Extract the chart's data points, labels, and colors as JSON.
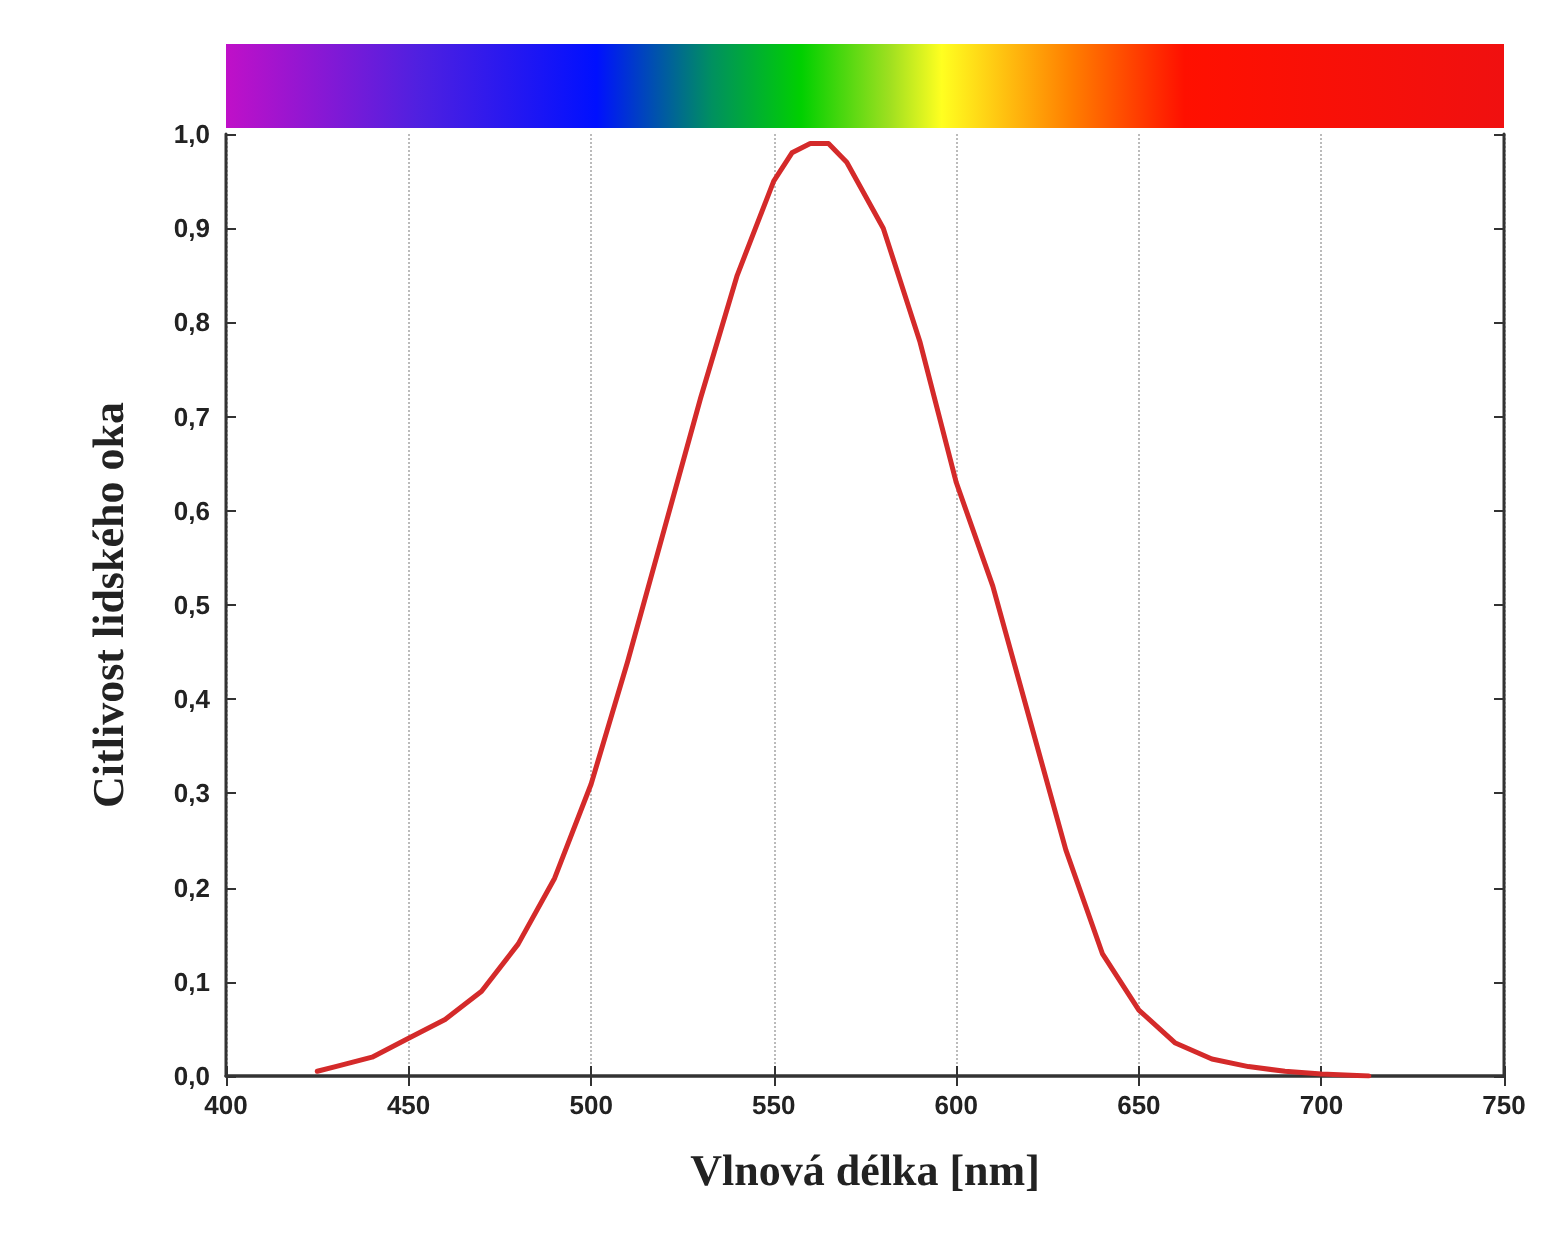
{
  "chart_data": {
    "type": "line",
    "xlabel": "Vlnová délka [nm]",
    "ylabel": "Citlivost lidského oka",
    "x": [
      425,
      430,
      440,
      450,
      460,
      470,
      480,
      490,
      500,
      510,
      520,
      530,
      540,
      550,
      555,
      560,
      565,
      570,
      580,
      590,
      600,
      610,
      620,
      630,
      640,
      650,
      660,
      670,
      680,
      690,
      700,
      713
    ],
    "series": [
      {
        "color": "#d42a2a",
        "values": [
          0.005,
          0.01,
          0.02,
          0.04,
          0.06,
          0.09,
          0.14,
          0.21,
          0.31,
          0.44,
          0.58,
          0.72,
          0.85,
          0.95,
          0.98,
          0.99,
          0.99,
          0.97,
          0.9,
          0.78,
          0.63,
          0.52,
          0.38,
          0.24,
          0.13,
          0.07,
          0.035,
          0.018,
          0.01,
          0.005,
          0.002,
          0
        ]
      }
    ],
    "xlim": [
      400,
      750
    ],
    "xticks": [
      400,
      450,
      500,
      550,
      600,
      650,
      700,
      750
    ],
    "ylim": [
      0,
      1
    ],
    "yticks": [
      {
        "value": 0,
        "label": "0,0"
      },
      {
        "value": 0.1,
        "label": "0,1"
      },
      {
        "value": 0.2,
        "label": "0,2"
      },
      {
        "value": 0.3,
        "label": "0,3"
      },
      {
        "value": 0.4,
        "label": "0,4"
      },
      {
        "value": 0.5,
        "label": "0,5"
      },
      {
        "value": 0.6,
        "label": "0,6"
      },
      {
        "value": 0.7,
        "label": "0,7"
      },
      {
        "value": 0.8,
        "label": "0,8"
      },
      {
        "value": 0.9,
        "label": "0,9"
      },
      {
        "value": 1,
        "label": "1,0"
      }
    ],
    "grid": "x",
    "marker": "none",
    "line_style": "solid"
  }
}
